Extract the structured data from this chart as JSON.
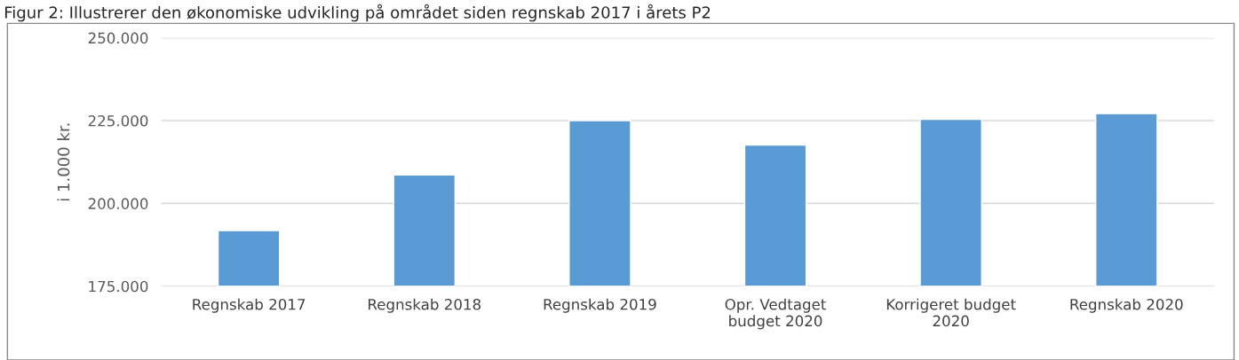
{
  "chart_data": {
    "type": "bar",
    "title": "Figur 2: Illustrerer den økonomiske udvikling på området siden regnskab 2017 i årets P2",
    "ylabel": "i 1.000 kr.",
    "categories": [
      "Regnskab 2017",
      "Regnskab 2018",
      "Regnskab 2019",
      "Opr. Vedtaget\nbudget 2020",
      "Korrigeret budget\n2020",
      "Regnskab 2020"
    ],
    "values": [
      191800,
      208600,
      225000,
      217600,
      225400,
      227100
    ],
    "color": "#5b9bd5",
    "ylim": [
      175000,
      250000
    ],
    "yticks": [
      {
        "value": 175000,
        "label": "175.000"
      },
      {
        "value": 200000,
        "label": "200.000"
      },
      {
        "value": 225000,
        "label": "225.000"
      },
      {
        "value": 250000,
        "label": "250.000"
      }
    ],
    "grid": "y"
  }
}
